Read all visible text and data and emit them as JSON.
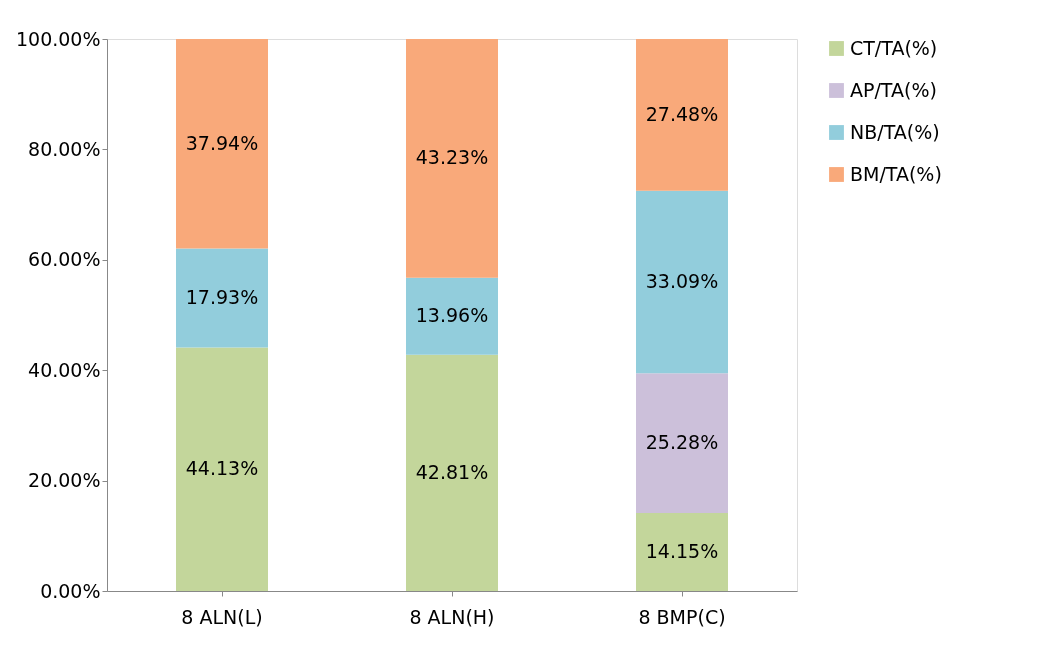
{
  "chart_data": {
    "type": "bar",
    "stacked": true,
    "categories": [
      "8 ALN(L)",
      "8 ALN(H)",
      "8 BMP(C)"
    ],
    "series": [
      {
        "name": "CT/TA(%)",
        "color": "#c3d69b",
        "values": [
          44.13,
          42.81,
          14.15
        ],
        "value_labels": [
          "44.13%",
          "42.81%",
          "14.15%"
        ]
      },
      {
        "name": "AP/TA(%)",
        "color": "#ccc0da",
        "values": [
          null,
          null,
          25.28
        ],
        "value_labels": [
          null,
          null,
          "25.28%"
        ]
      },
      {
        "name": "NB/TA(%)",
        "color": "#92cddc",
        "values": [
          17.93,
          13.96,
          33.09
        ],
        "value_labels": [
          "17.93%",
          "13.96%",
          "33.09%"
        ]
      },
      {
        "name": "BM/TA(%)",
        "color": "#f9a97a",
        "values": [
          37.94,
          43.23,
          27.48
        ],
        "value_labels": [
          "37.94%",
          "43.23%",
          "27.48%"
        ]
      }
    ],
    "ylim": [
      0,
      100
    ],
    "yticks": [
      {
        "value": 0,
        "label": "0.00%"
      },
      {
        "value": 20,
        "label": "20.00%"
      },
      {
        "value": 40,
        "label": "40.00%"
      },
      {
        "value": 60,
        "label": "60.00%"
      },
      {
        "value": 80,
        "label": "80.00%"
      },
      {
        "value": 100,
        "label": "100.00%"
      }
    ],
    "legend": "right",
    "grid": false
  }
}
